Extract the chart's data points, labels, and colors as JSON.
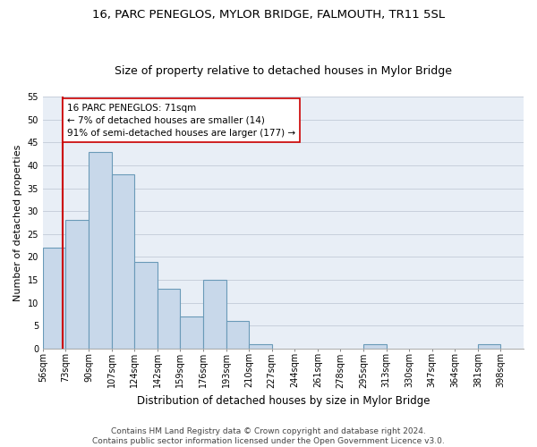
{
  "title": "16, PARC PENEGLOS, MYLOR BRIDGE, FALMOUTH, TR11 5SL",
  "subtitle": "Size of property relative to detached houses in Mylor Bridge",
  "xlabel": "Distribution of detached houses by size in Mylor Bridge",
  "ylabel": "Number of detached properties",
  "bin_labels": [
    "56sqm",
    "73sqm",
    "90sqm",
    "107sqm",
    "124sqm",
    "142sqm",
    "159sqm",
    "176sqm",
    "193sqm",
    "210sqm",
    "227sqm",
    "244sqm",
    "261sqm",
    "278sqm",
    "295sqm",
    "313sqm",
    "330sqm",
    "347sqm",
    "364sqm",
    "381sqm",
    "398sqm"
  ],
  "values": [
    22,
    28,
    43,
    38,
    19,
    13,
    7,
    15,
    6,
    1,
    0,
    0,
    0,
    0,
    1,
    0,
    0,
    0,
    0,
    1,
    0
  ],
  "bar_color": "#c8d8ea",
  "bar_edgecolor": "#6a9ab8",
  "bar_linewidth": 0.8,
  "grid_color": "#c8d0dc",
  "background_color": "#e8eef6",
  "vline_x": 71,
  "vline_color": "#cc0000",
  "annotation_text": "16 PARC PENEGLOS: 71sqm\n← 7% of detached houses are smaller (14)\n91% of semi-detached houses are larger (177) →",
  "annotation_box_edgecolor": "#cc0000",
  "annotation_fontsize": 7.5,
  "ylim": [
    0,
    55
  ],
  "yticks": [
    0,
    5,
    10,
    15,
    20,
    25,
    30,
    35,
    40,
    45,
    50,
    55
  ],
  "footer_line1": "Contains HM Land Registry data © Crown copyright and database right 2024.",
  "footer_line2": "Contains public sector information licensed under the Open Government Licence v3.0.",
  "title_fontsize": 9.5,
  "subtitle_fontsize": 9,
  "xlabel_fontsize": 8.5,
  "ylabel_fontsize": 8,
  "tick_fontsize": 7,
  "footer_fontsize": 6.5
}
